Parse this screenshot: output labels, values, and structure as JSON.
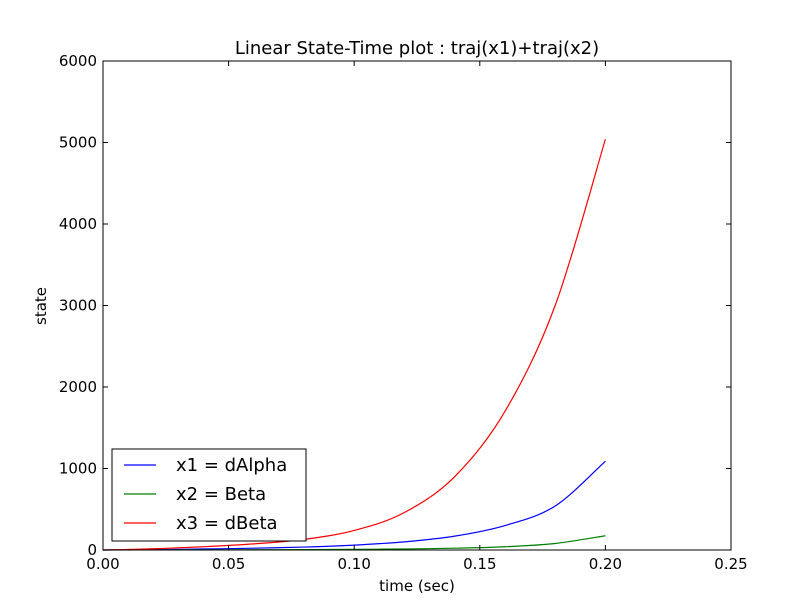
{
  "chart_data": {
    "type": "line",
    "title": "Linear State-Time plot : traj(x1)+traj(x2)",
    "xlabel": "time (sec)",
    "ylabel": "state",
    "xlim": [
      0.0,
      0.25
    ],
    "ylim": [
      0,
      6000
    ],
    "xticks": [
      0.0,
      0.05,
      0.1,
      0.15,
      0.2,
      0.25
    ],
    "xtick_labels": [
      "0.00",
      "0.05",
      "0.10",
      "0.15",
      "0.20",
      "0.25"
    ],
    "yticks": [
      0,
      1000,
      2000,
      3000,
      4000,
      5000,
      6000
    ],
    "ytick_labels": [
      "0",
      "1000",
      "2000",
      "3000",
      "4000",
      "5000",
      "6000"
    ],
    "grid": false,
    "legend_position": "lower-left",
    "x": [
      0.0,
      0.02,
      0.04,
      0.06,
      0.08,
      0.1,
      0.12,
      0.14,
      0.16,
      0.18,
      0.2
    ],
    "series": [
      {
        "name": "x1 = dAlpha",
        "color": "#0000ff",
        "values": [
          0,
          5,
          12,
          22,
          36,
          60,
          100,
          170,
          300,
          540,
          1090
        ]
      },
      {
        "name": "x2 = Beta",
        "color": "#008000",
        "values": [
          0,
          1,
          2,
          3,
          5,
          8,
          13,
          22,
          40,
          80,
          175
        ]
      },
      {
        "name": "x3 = dBeta",
        "color": "#ff0000",
        "values": [
          0,
          15,
          40,
          75,
          130,
          240,
          460,
          900,
          1700,
          3000,
          5040
        ]
      }
    ]
  }
}
